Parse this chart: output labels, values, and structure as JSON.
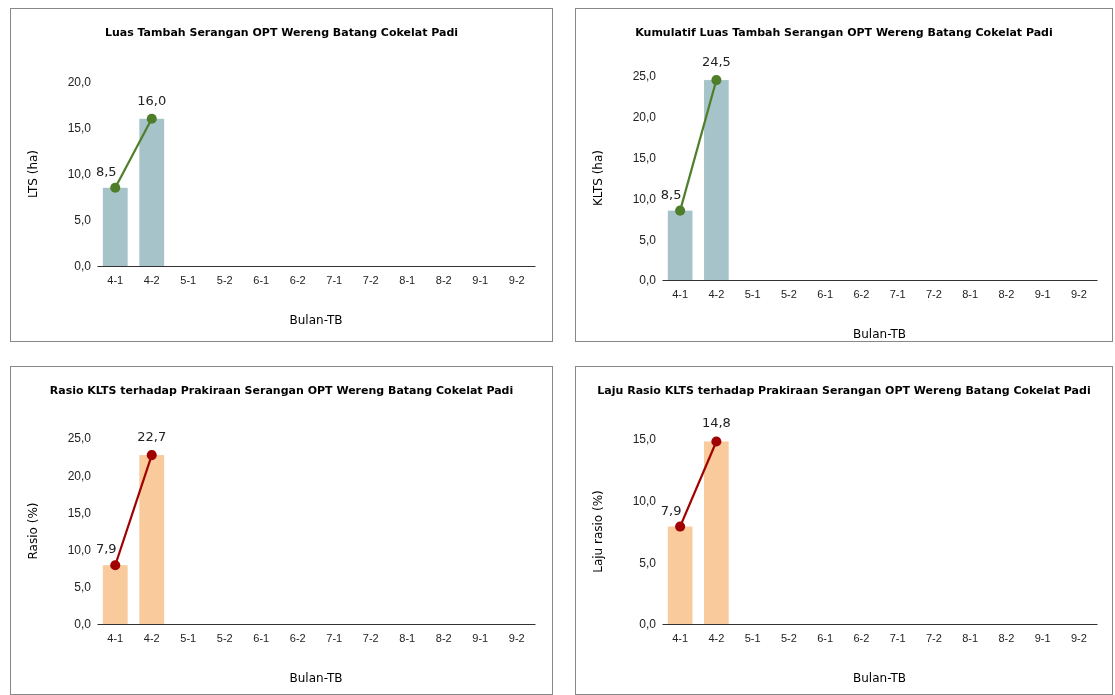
{
  "chart_data": [
    {
      "type": "bar",
      "title": "Luas Tambah Serangan OPT Wereng Batang Cokelat Padi",
      "xlabel": "Bulan-TB",
      "ylabel": "LTS (ha)",
      "categories": [
        "4-1",
        "4-2",
        "5-1",
        "5-2",
        "6-1",
        "6-2",
        "7-1",
        "7-2",
        "8-1",
        "8-2",
        "9-1",
        "9-2"
      ],
      "ylim": [
        0,
        20
      ],
      "yticks": [
        {
          "value": 0,
          "label": "0,0"
        },
        {
          "value": 5,
          "label": "5,0"
        },
        {
          "value": 10,
          "label": "10,0"
        },
        {
          "value": 15,
          "label": "15,0"
        },
        {
          "value": 20,
          "label": "20,0"
        }
      ],
      "marker": "circle",
      "series": [
        {
          "color": "#a5c3c8",
          "values": [
            8.5,
            16.0,
            null,
            null,
            null,
            null,
            null,
            null,
            null,
            null,
            null,
            null
          ]
        },
        {
          "type": "line",
          "color": "#4e7e2a",
          "values": [
            8.5,
            16.0,
            null,
            null,
            null,
            null,
            null,
            null,
            null,
            null,
            null,
            null
          ],
          "value_labels": [
            "8,5",
            "16,0",
            null,
            null,
            null,
            null,
            null,
            null,
            null,
            null,
            null,
            null
          ]
        }
      ]
    },
    {
      "type": "bar",
      "title": "Kumulatif Luas Tambah Serangan OPT  Wereng Batang Cokelat Padi",
      "xlabel": "Bulan-TB",
      "ylabel": "KLTS (ha)",
      "categories": [
        "4-1",
        "4-2",
        "5-1",
        "5-2",
        "6-1",
        "6-2",
        "7-1",
        "7-2",
        "8-1",
        "8-2",
        "9-1",
        "9-2"
      ],
      "ylim": [
        0,
        25
      ],
      "yticks": [
        {
          "value": 0,
          "label": "0,0"
        },
        {
          "value": 5,
          "label": "5,0"
        },
        {
          "value": 10,
          "label": "10,0"
        },
        {
          "value": 15,
          "label": "15,0"
        },
        {
          "value": 20,
          "label": "20,0"
        },
        {
          "value": 25,
          "label": "25,0"
        }
      ],
      "marker": "circle",
      "series": [
        {
          "color": "#a5c3c8",
          "values": [
            8.5,
            24.5,
            null,
            null,
            null,
            null,
            null,
            null,
            null,
            null,
            null,
            null
          ]
        },
        {
          "type": "line",
          "color": "#4e7e2a",
          "values": [
            8.5,
            24.5,
            null,
            null,
            null,
            null,
            null,
            null,
            null,
            null,
            null,
            null
          ],
          "value_labels": [
            "8,5",
            "24,5",
            null,
            null,
            null,
            null,
            null,
            null,
            null,
            null,
            null,
            null
          ]
        }
      ]
    },
    {
      "type": "bar",
      "title": "Rasio KLTS terhadap Prakiraan Serangan OPT Wereng Batang Cokelat Padi",
      "xlabel": "Bulan-TB",
      "ylabel": "Rasio (%)",
      "categories": [
        "4-1",
        "4-2",
        "5-1",
        "5-2",
        "6-1",
        "6-2",
        "7-1",
        "7-2",
        "8-1",
        "8-2",
        "9-1",
        "9-2"
      ],
      "ylim": [
        0,
        25
      ],
      "yticks": [
        {
          "value": 0,
          "label": "0,0"
        },
        {
          "value": 5,
          "label": "5,0"
        },
        {
          "value": 10,
          "label": "10,0"
        },
        {
          "value": 15,
          "label": "15,0"
        },
        {
          "value": 20,
          "label": "20,0"
        },
        {
          "value": 25,
          "label": "25,0"
        }
      ],
      "marker": "circle",
      "series": [
        {
          "color": "#f8ca9c",
          "values": [
            7.9,
            22.7,
            null,
            null,
            null,
            null,
            null,
            null,
            null,
            null,
            null,
            null
          ]
        },
        {
          "type": "line",
          "color": "#a00000",
          "values": [
            7.9,
            22.7,
            null,
            null,
            null,
            null,
            null,
            null,
            null,
            null,
            null,
            null
          ],
          "value_labels": [
            "7,9",
            "22,7",
            null,
            null,
            null,
            null,
            null,
            null,
            null,
            null,
            null,
            null
          ]
        }
      ]
    },
    {
      "type": "bar",
      "title": "Laju Rasio KLTS terhadap Prakiraan Serangan OPT Wereng Batang Cokelat Padi",
      "xlabel": "Bulan-TB",
      "ylabel": "Laju rasio (%)",
      "categories": [
        "4-1",
        "4-2",
        "5-1",
        "5-2",
        "6-1",
        "6-2",
        "7-1",
        "7-2",
        "8-1",
        "8-2",
        "9-1",
        "9-2"
      ],
      "ylim": [
        0,
        15
      ],
      "yticks": [
        {
          "value": 0,
          "label": "0,0"
        },
        {
          "value": 5,
          "label": "5,0"
        },
        {
          "value": 10,
          "label": "10,0"
        },
        {
          "value": 15,
          "label": "15,0"
        }
      ],
      "marker": "circle",
      "series": [
        {
          "color": "#f8ca9c",
          "values": [
            7.9,
            14.8,
            null,
            null,
            null,
            null,
            null,
            null,
            null,
            null,
            null,
            null
          ]
        },
        {
          "type": "line",
          "color": "#a00000",
          "values": [
            7.9,
            14.8,
            null,
            null,
            null,
            null,
            null,
            null,
            null,
            null,
            null,
            null
          ],
          "value_labels": [
            "7,9",
            "14,8",
            null,
            null,
            null,
            null,
            null,
            null,
            null,
            null,
            null,
            null
          ]
        }
      ]
    }
  ]
}
